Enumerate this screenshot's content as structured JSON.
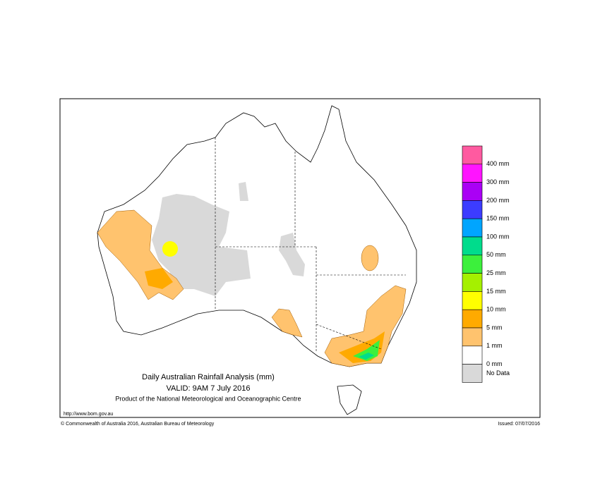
{
  "title": "Daily Australian Rainfall Analysis (mm)",
  "valid": "VALID: 9AM  7 July 2016",
  "product": "Product of the National Meteorological and Oceanographic Centre",
  "url": "http://www.bom.gov.au",
  "copyright": "© Commonwealth of Australia 2016, Australian Bureau of Meteorology",
  "issued": "Issued: 07/07/2016",
  "legend": {
    "labels": [
      "400 mm",
      "300 mm",
      "200 mm",
      "150 mm",
      "100 mm",
      "50 mm",
      "25 mm",
      "15 mm",
      "10 mm",
      "5 mm",
      "1 mm",
      "0 mm"
    ],
    "colors": [
      "#ff5aa0",
      "#ff14ff",
      "#aa00f5",
      "#3c3cff",
      "#00a5ff",
      "#00dc8c",
      "#3cf03c",
      "#a5f000",
      "#ffff00",
      "#ffaa00",
      "#ffc36e",
      "#ffffff",
      "#d9d9d9"
    ],
    "no_data_label": "No Data"
  }
}
